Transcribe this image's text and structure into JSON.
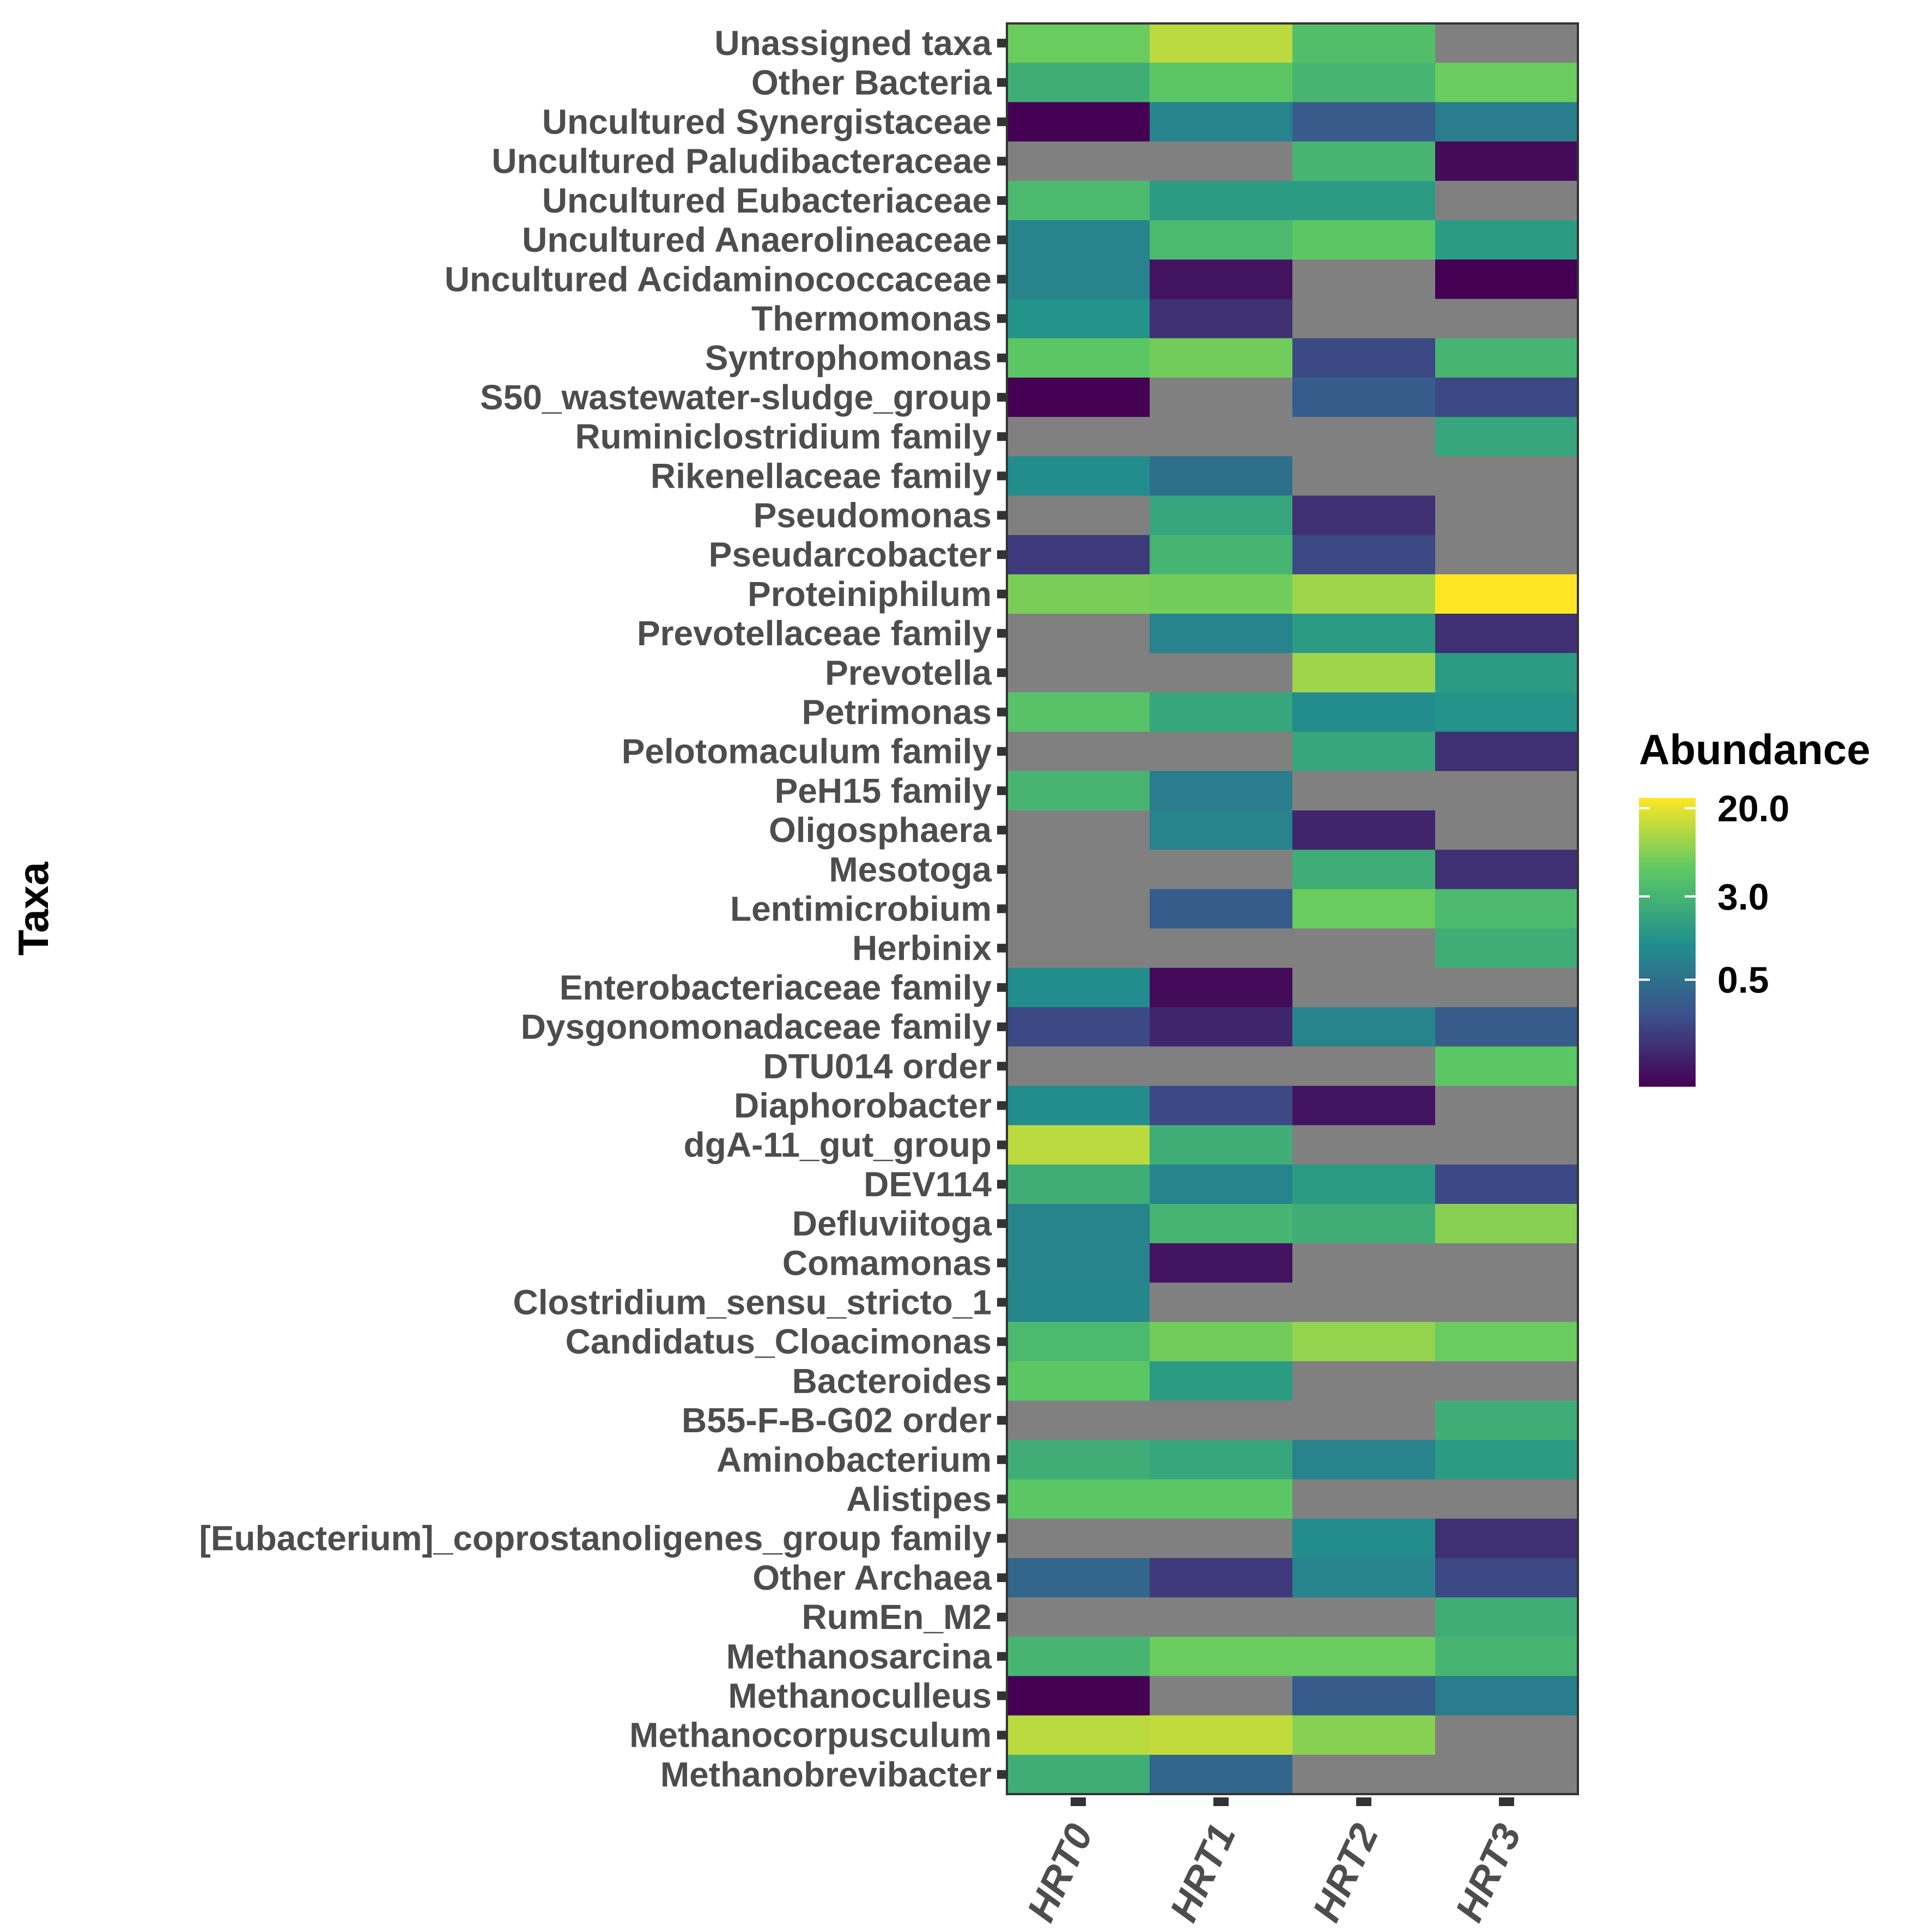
{
  "chart_data": {
    "type": "heatmap",
    "title": "",
    "xlabel": "",
    "ylabel": "Taxa",
    "columns": [
      "HRT0",
      "HRT1",
      "HRT2",
      "HRT3"
    ],
    "rows": [
      {
        "taxon": "Unassigned taxa",
        "values": [
          6.0,
          13.0,
          4.0,
          null
        ]
      },
      {
        "taxon": "Other Bacteria",
        "values": [
          2.5,
          5.0,
          3.0,
          6.0
        ]
      },
      {
        "taxon": "Uncultured Synergistaceae",
        "values": [
          0.05,
          0.8,
          0.3,
          0.7
        ]
      },
      {
        "taxon": "Uncultured Paludibacteraceae",
        "values": [
          null,
          null,
          3.0,
          0.06
        ]
      },
      {
        "taxon": "Uncultured Eubacteriaceae",
        "values": [
          3.5,
          1.5,
          1.5,
          null
        ]
      },
      {
        "taxon": "Uncultured Anaerolineaceae",
        "values": [
          0.8,
          3.5,
          5.0,
          1.5
        ]
      },
      {
        "taxon": "Uncultured Acidaminococcaceae",
        "values": [
          0.8,
          0.07,
          null,
          0.05
        ]
      },
      {
        "taxon": "Thermomonas",
        "values": [
          1.2,
          0.12,
          null,
          null
        ]
      },
      {
        "taxon": "Syntrophomonas",
        "values": [
          5.0,
          6.5,
          0.2,
          3.0
        ]
      },
      {
        "taxon": "S50_wastewater-sludge_group",
        "values": [
          0.05,
          null,
          0.3,
          0.2
        ]
      },
      {
        "taxon": "Ruminiclostridium family",
        "values": [
          null,
          null,
          null,
          2.0
        ]
      },
      {
        "taxon": "Rikenellaceae family",
        "values": [
          1.0,
          0.5,
          null,
          null
        ]
      },
      {
        "taxon": "Pseudomonas",
        "values": [
          null,
          2.0,
          0.12,
          null
        ]
      },
      {
        "taxon": "Pseudarcobacter",
        "values": [
          0.15,
          3.0,
          0.2,
          null
        ]
      },
      {
        "taxon": "Proteiniphilum",
        "values": [
          7.0,
          6.5,
          10.0,
          25.0
        ]
      },
      {
        "taxon": "Prevotellaceae family",
        "values": [
          null,
          0.8,
          1.5,
          0.12
        ]
      },
      {
        "taxon": "Prevotella",
        "values": [
          null,
          null,
          10.0,
          1.5
        ]
      },
      {
        "taxon": "Petrimonas",
        "values": [
          4.5,
          2.0,
          1.0,
          1.2
        ]
      },
      {
        "taxon": "Pelotomaculum family",
        "values": [
          null,
          null,
          2.0,
          0.12
        ]
      },
      {
        "taxon": "PeH15 family",
        "values": [
          3.0,
          0.7,
          null,
          null
        ]
      },
      {
        "taxon": "Oligosphaera",
        "values": [
          null,
          0.8,
          0.1,
          null
        ]
      },
      {
        "taxon": "Mesotoga",
        "values": [
          null,
          null,
          2.5,
          0.12
        ]
      },
      {
        "taxon": "Lentimicrobium",
        "values": [
          null,
          0.3,
          6.0,
          3.5
        ]
      },
      {
        "taxon": "Herbinix",
        "values": [
          null,
          null,
          null,
          2.5
        ]
      },
      {
        "taxon": "Enterobacteriaceae family",
        "values": [
          1.0,
          0.06,
          null,
          null
        ]
      },
      {
        "taxon": "Dysgonomonadaceae family",
        "values": [
          0.2,
          0.1,
          0.8,
          0.3
        ]
      },
      {
        "taxon": "DTU014 order",
        "values": [
          null,
          null,
          null,
          5.0
        ]
      },
      {
        "taxon": "Diaphorobacter",
        "values": [
          1.0,
          0.2,
          0.07,
          null
        ]
      },
      {
        "taxon": "dgA-11_gut_group",
        "values": [
          13.0,
          2.5,
          null,
          null
        ]
      },
      {
        "taxon": "DEV114",
        "values": [
          2.5,
          0.8,
          1.5,
          0.2
        ]
      },
      {
        "taxon": "Defluviitoga",
        "values": [
          0.8,
          3.0,
          2.5,
          8.0
        ]
      },
      {
        "taxon": "Comamonas",
        "values": [
          0.8,
          0.07,
          null,
          null
        ]
      },
      {
        "taxon": "Clostridium_sensu_stricto_1",
        "values": [
          0.9,
          null,
          null,
          null
        ]
      },
      {
        "taxon": "Candidatus_Cloacimonas",
        "values": [
          3.5,
          6.5,
          9.0,
          6.0
        ]
      },
      {
        "taxon": "Bacteroides",
        "values": [
          5.0,
          1.5,
          null,
          null
        ]
      },
      {
        "taxon": "B55-F-B-G02 order",
        "values": [
          null,
          null,
          null,
          2.5
        ]
      },
      {
        "taxon": "Aminobacterium",
        "values": [
          2.5,
          2.0,
          0.8,
          1.5
        ]
      },
      {
        "taxon": "Alistipes",
        "values": [
          5.0,
          5.0,
          null,
          null
        ]
      },
      {
        "taxon": "[Eubacterium]_coprostanoligenes_group family",
        "values": [
          null,
          null,
          1.0,
          0.12
        ]
      },
      {
        "taxon": "Other Archaea",
        "values": [
          0.4,
          0.15,
          0.8,
          0.2
        ]
      },
      {
        "taxon": "RumEn_M2",
        "values": [
          null,
          null,
          null,
          2.5
        ]
      },
      {
        "taxon": "Methanosarcina",
        "values": [
          3.0,
          6.0,
          6.0,
          3.0
        ]
      },
      {
        "taxon": "Methanoculleus",
        "values": [
          0.05,
          null,
          0.3,
          0.7
        ]
      },
      {
        "taxon": "Methanocorpusculum",
        "values": [
          13.0,
          14.0,
          8.0,
          null
        ]
      },
      {
        "taxon": "Methanobrevibacter",
        "values": [
          2.5,
          0.4,
          null,
          null
        ]
      }
    ],
    "legend": {
      "title": "Abundance",
      "ticks": [
        "20.0",
        "3.0",
        "0.5"
      ],
      "tick_values": [
        20.0,
        3.0,
        0.5
      ],
      "scale": "log",
      "range": [
        0.05,
        25.0
      ],
      "placement": "right",
      "palette": [
        "#440154",
        "#3b528b",
        "#21908c",
        "#5dc863",
        "#fde725"
      ]
    },
    "na_color": "#808080",
    "grid": false
  }
}
